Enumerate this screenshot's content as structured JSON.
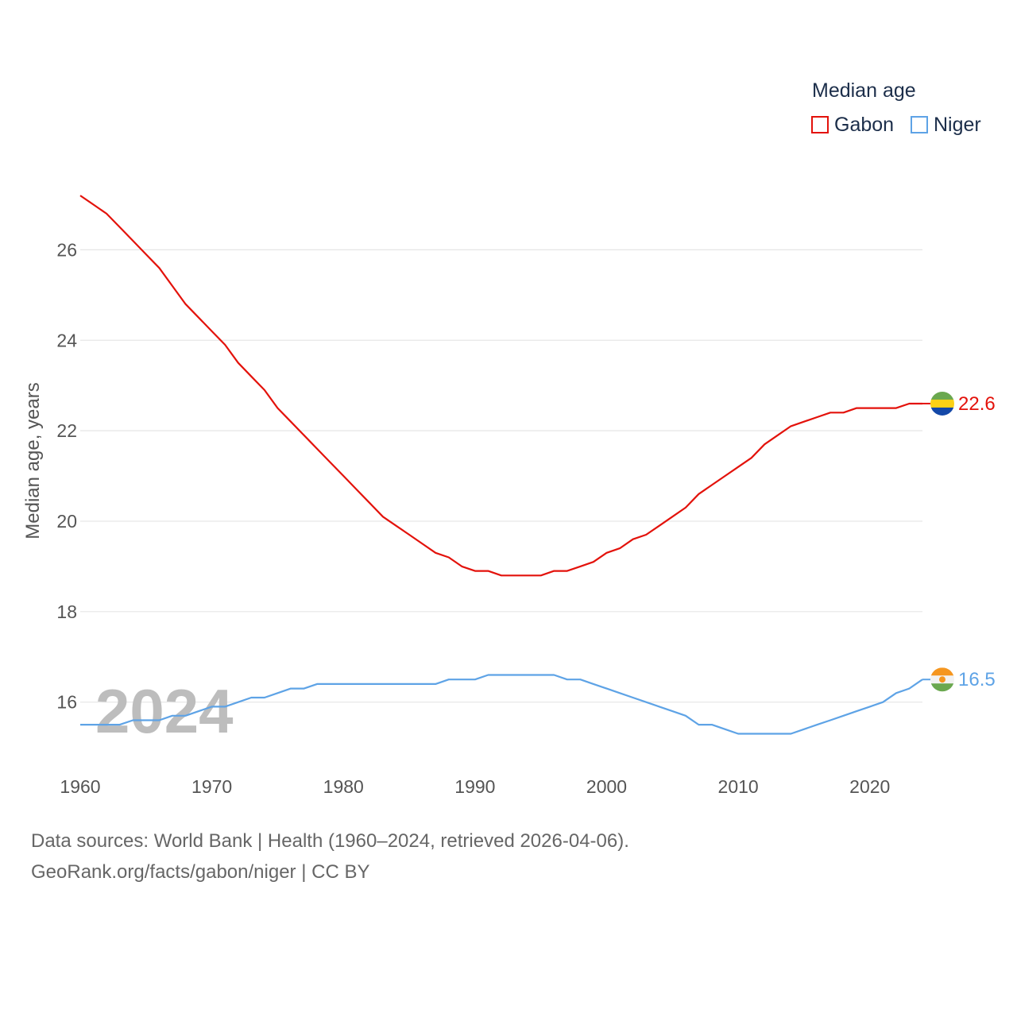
{
  "legend": {
    "title": "Median age",
    "items": [
      {
        "label": "Gabon",
        "color": "#e3120b"
      },
      {
        "label": "Niger",
        "color": "#5ea3e6"
      }
    ]
  },
  "source": {
    "line1": "Data sources: World Bank | Health (1960–2024, retrieved 2026-04-06).",
    "line2": "GeoRank.org/facts/gabon/niger | CC BY"
  },
  "chart_data": {
    "type": "line",
    "title": "Median age",
    "xlabel": "",
    "ylabel": "Median age, years",
    "xlim": [
      1960,
      2024
    ],
    "ylim": [
      14.8,
      27.5
    ],
    "x_ticks": [
      1960,
      1970,
      1980,
      1990,
      2000,
      2010,
      2020
    ],
    "y_ticks": [
      16,
      18,
      20,
      22,
      24,
      26
    ],
    "grid": true,
    "legend_position": "top-right",
    "year_watermark": "2024",
    "x": [
      1960,
      1961,
      1962,
      1963,
      1964,
      1965,
      1966,
      1967,
      1968,
      1969,
      1970,
      1971,
      1972,
      1973,
      1974,
      1975,
      1976,
      1977,
      1978,
      1979,
      1980,
      1981,
      1982,
      1983,
      1984,
      1985,
      1986,
      1987,
      1988,
      1989,
      1990,
      1991,
      1992,
      1993,
      1994,
      1995,
      1996,
      1997,
      1998,
      1999,
      2000,
      2001,
      2002,
      2003,
      2004,
      2005,
      2006,
      2007,
      2008,
      2009,
      2010,
      2011,
      2012,
      2013,
      2014,
      2015,
      2016,
      2017,
      2018,
      2019,
      2020,
      2021,
      2022,
      2023,
      2024
    ],
    "series": [
      {
        "name": "Gabon",
        "color": "#e3120b",
        "end_label": "22.6",
        "values": [
          27.2,
          27.0,
          26.8,
          26.5,
          26.2,
          25.9,
          25.6,
          25.2,
          24.8,
          24.5,
          24.2,
          23.9,
          23.5,
          23.2,
          22.9,
          22.5,
          22.2,
          21.9,
          21.6,
          21.3,
          21.0,
          20.7,
          20.4,
          20.1,
          19.9,
          19.7,
          19.5,
          19.3,
          19.2,
          19.0,
          18.9,
          18.9,
          18.8,
          18.8,
          18.8,
          18.8,
          18.9,
          18.9,
          19.0,
          19.1,
          19.3,
          19.4,
          19.6,
          19.7,
          19.9,
          20.1,
          20.3,
          20.6,
          20.8,
          21.0,
          21.2,
          21.4,
          21.7,
          21.9,
          22.1,
          22.2,
          22.3,
          22.4,
          22.4,
          22.5,
          22.5,
          22.5,
          22.5,
          22.6,
          22.6
        ]
      },
      {
        "name": "Niger",
        "color": "#5ea3e6",
        "end_label": "16.5",
        "values": [
          15.5,
          15.5,
          15.5,
          15.5,
          15.6,
          15.6,
          15.6,
          15.7,
          15.7,
          15.8,
          15.9,
          15.9,
          16.0,
          16.1,
          16.1,
          16.2,
          16.3,
          16.3,
          16.4,
          16.4,
          16.4,
          16.4,
          16.4,
          16.4,
          16.4,
          16.4,
          16.4,
          16.4,
          16.5,
          16.5,
          16.5,
          16.6,
          16.6,
          16.6,
          16.6,
          16.6,
          16.6,
          16.5,
          16.5,
          16.4,
          16.3,
          16.2,
          16.1,
          16.0,
          15.9,
          15.8,
          15.7,
          15.5,
          15.5,
          15.4,
          15.3,
          15.3,
          15.3,
          15.3,
          15.3,
          15.4,
          15.5,
          15.6,
          15.7,
          15.8,
          15.9,
          16.0,
          16.2,
          16.3,
          16.5
        ]
      }
    ]
  }
}
